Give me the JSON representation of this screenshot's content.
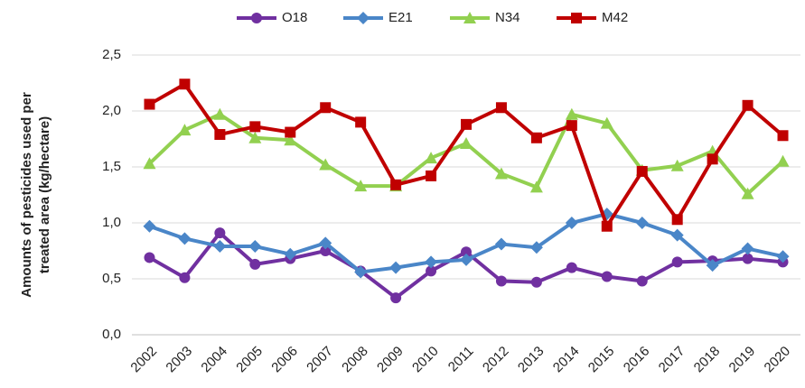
{
  "chart_data": {
    "type": "line",
    "y_label": [
      "Amounts of pesticides used per",
      "treated area (kg/hectare)"
    ],
    "categories": [
      "2002",
      "2003",
      "2004",
      "2005",
      "2006",
      "2007",
      "2008",
      "2009",
      "2010",
      "2011",
      "2012",
      "2013",
      "2014",
      "2015",
      "2016",
      "2017",
      "2018",
      "2019",
      "2020"
    ],
    "series": [
      {
        "name": "O18",
        "color": "#7030a0",
        "marker": "circle",
        "values": [
          0.69,
          0.51,
          0.91,
          0.63,
          0.68,
          0.75,
          0.57,
          0.33,
          0.57,
          0.74,
          0.48,
          0.47,
          0.6,
          0.52,
          0.48,
          0.65,
          0.66,
          0.68,
          0.65
        ]
      },
      {
        "name": "E21",
        "color": "#4a86c8",
        "marker": "diamond",
        "values": [
          0.97,
          0.86,
          0.79,
          0.79,
          0.72,
          0.82,
          0.56,
          0.6,
          0.65,
          0.67,
          0.81,
          0.78,
          1.0,
          1.08,
          1.0,
          0.89,
          0.62,
          0.77,
          0.7
        ]
      },
      {
        "name": "N34",
        "color": "#92d050",
        "marker": "triangle",
        "values": [
          1.53,
          1.83,
          1.97,
          1.76,
          1.74,
          1.52,
          1.33,
          1.33,
          1.58,
          1.71,
          1.44,
          1.32,
          1.97,
          1.89,
          1.47,
          1.51,
          1.64,
          1.26,
          1.55
        ]
      },
      {
        "name": "M42",
        "color": "#c00000",
        "marker": "square",
        "values": [
          2.06,
          2.24,
          1.79,
          1.86,
          1.81,
          2.03,
          1.9,
          1.34,
          1.42,
          1.88,
          2.03,
          1.76,
          1.87,
          0.97,
          1.46,
          1.03,
          1.57,
          2.05,
          1.78
        ]
      }
    ],
    "ylim": [
      0,
      2.5
    ],
    "yticks": [
      {
        "value": 0,
        "label": "0,0"
      },
      {
        "value": 0.5,
        "label": "0,5"
      },
      {
        "value": 1,
        "label": "1,0"
      },
      {
        "value": 1.5,
        "label": "1,5"
      },
      {
        "value": 2,
        "label": "2,0"
      },
      {
        "value": 2.5,
        "label": "2,5"
      }
    ],
    "grid": true,
    "legend": "top"
  }
}
